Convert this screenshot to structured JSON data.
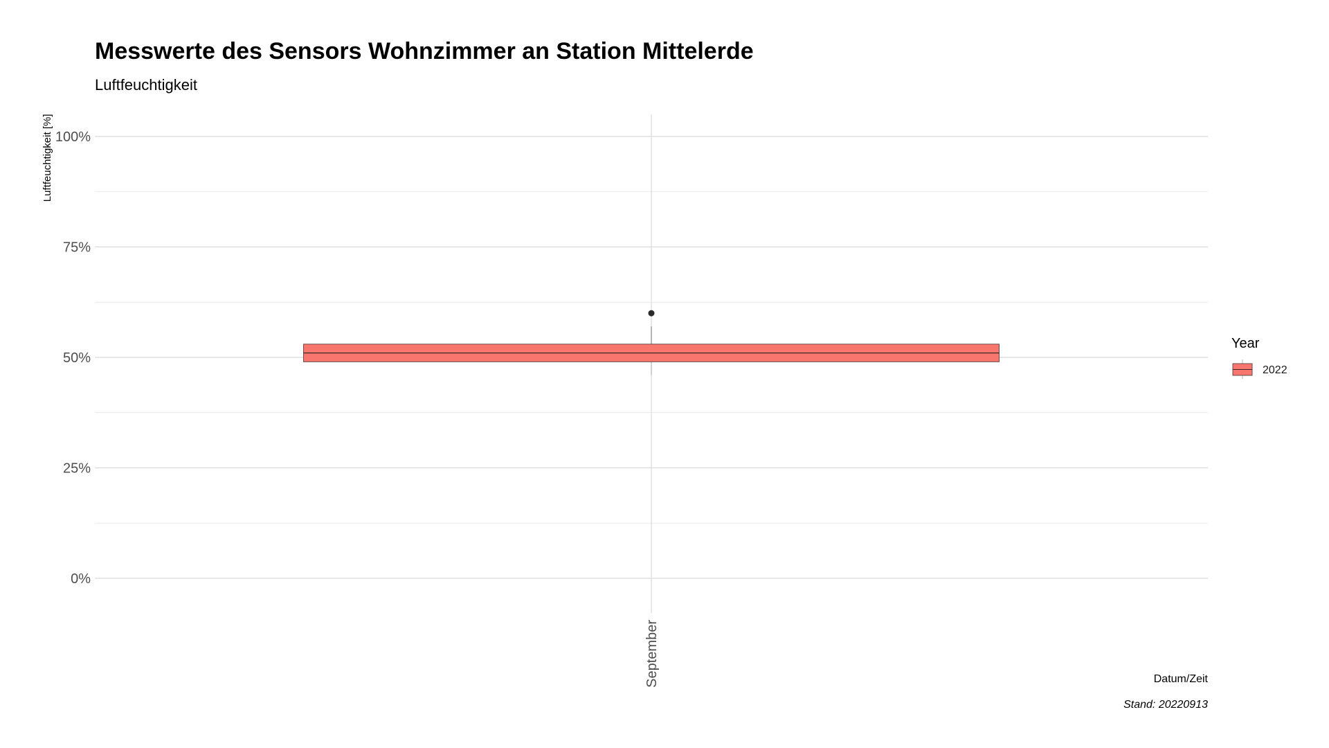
{
  "chart_data": {
    "type": "boxplot",
    "title": "Messwerte des Sensors Wohnzimmer an Station Mittelerde",
    "subtitle": "Luftfeuchtigkeit",
    "xlabel": "Datum/Zeit",
    "ylabel": "Luftfeuchtigkeit [%]",
    "caption": "Stand: 20220913",
    "categories": [
      "September"
    ],
    "y_ticks": [
      "0%",
      "25%",
      "50%",
      "75%",
      "100%"
    ],
    "y_tick_values": [
      0,
      25,
      50,
      75,
      100
    ],
    "ylim": [
      -5,
      105
    ],
    "grid": true,
    "legend": {
      "title": "Year",
      "position": "right",
      "entries": [
        {
          "label": "2022",
          "color": "#F8766D"
        }
      ]
    },
    "series": [
      {
        "name": "2022",
        "category": "September",
        "color": "#F8766D",
        "min": 46,
        "q1": 49,
        "median": 51,
        "q3": 53,
        "max": 57,
        "outliers": [
          60
        ]
      }
    ]
  }
}
